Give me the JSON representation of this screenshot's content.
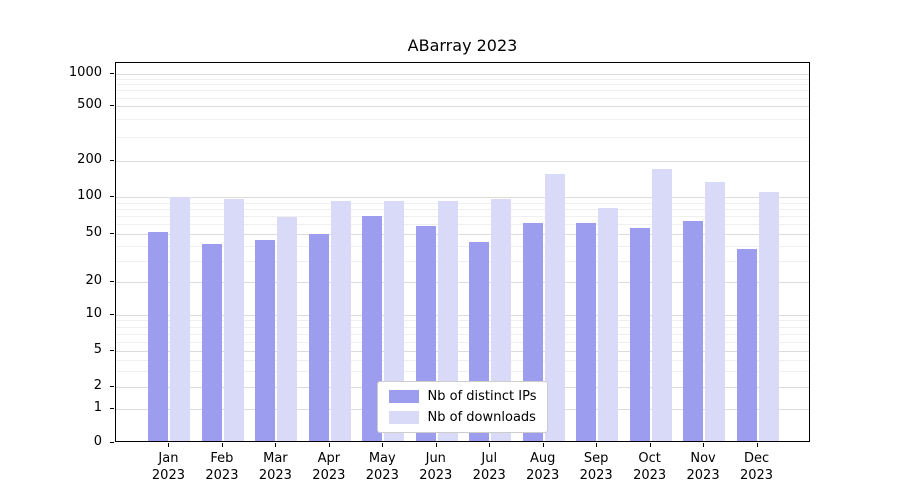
{
  "title": "ABarray 2023",
  "chart_data": {
    "type": "bar",
    "title": "ABarray 2023",
    "categories": [
      "Jan 2023",
      "Feb 2023",
      "Mar 2023",
      "Apr 2023",
      "May 2023",
      "Jun 2023",
      "Jul 2023",
      "Aug 2023",
      "Sep 2023",
      "Oct 2023",
      "Nov 2023",
      "Dec 2023"
    ],
    "series": [
      {
        "name": "Nb of distinct IPs",
        "color": "#9d9df0",
        "values": [
          50,
          40,
          43,
          48,
          68,
          56,
          41,
          59,
          59,
          54,
          61,
          36
        ]
      },
      {
        "name": "Nb of downloads",
        "color": "#d9d9f8",
        "values": [
          97,
          93,
          66,
          90,
          90,
          90,
          92,
          150,
          78,
          165,
          128,
          105
        ]
      }
    ],
    "yscale": "symlog",
    "yticks": [
      0,
      1,
      2,
      5,
      10,
      20,
      50,
      100,
      200,
      500,
      1000
    ],
    "ylim": [
      0,
      1250
    ],
    "xlabel": "",
    "ylabel": "",
    "grid": true,
    "legend_position": "lower center"
  }
}
